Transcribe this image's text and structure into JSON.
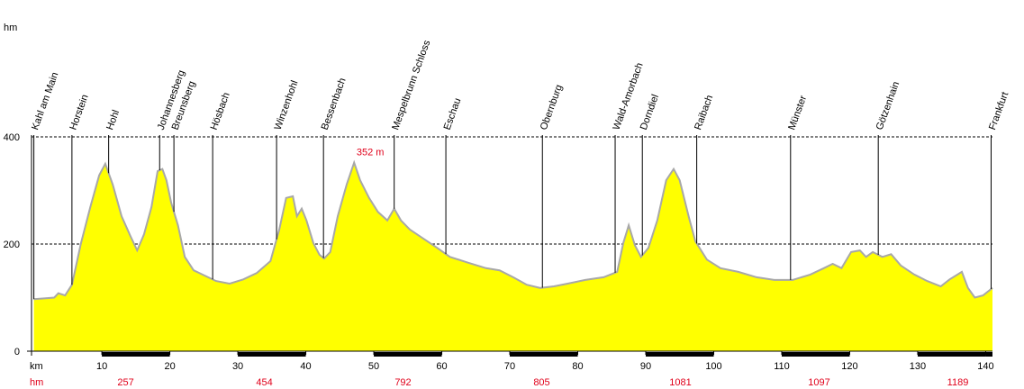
{
  "chart_data": {
    "type": "area",
    "y_axis_label": "hm",
    "x_axis_label": "km",
    "color": "#ffff00",
    "line_color": "#a8a8a8",
    "x": [
      0,
      3.0,
      3.6,
      4.6,
      5.6,
      6.9,
      8.3,
      9.6,
      10.5,
      11.6,
      12.9,
      14.2,
      15.2,
      16.2,
      17.3,
      18.2,
      18.9,
      19.5,
      20.2,
      21.2,
      22.2,
      23.5,
      24.8,
      26.8,
      28.8,
      30.8,
      32.8,
      34.8,
      36.1,
      37.1,
      38.1,
      38.7,
      39.4,
      40.1,
      41.1,
      42.0,
      42.7,
      43.6,
      44.7,
      46.0,
      47.1,
      48.0,
      49.3,
      50.6,
      52.0,
      53.0,
      54.0,
      55.3,
      57.3,
      59.3,
      61.2,
      63.9,
      66.5,
      68.5,
      70.5,
      72.5,
      74.5,
      76.5,
      78.5,
      81.1,
      83.8,
      85.8,
      86.7,
      87.5,
      88.4,
      89.3,
      90.4,
      91.7,
      93.0,
      94.1,
      95.0,
      96.3,
      97.3,
      99.0,
      101.0,
      103.6,
      106.3,
      108.9,
      111.6,
      114.2,
      116.2,
      117.5,
      118.8,
      120.2,
      121.5,
      122.4,
      123.4,
      124.8,
      126.1,
      127.5,
      129.5,
      131.4,
      133.4,
      134.7,
      136.5,
      137.4,
      138.4,
      139.6,
      141.0
    ],
    "values": [
      97,
      100,
      108,
      104,
      124,
      200,
      269,
      328,
      350,
      311,
      252,
      215,
      188,
      218,
      269,
      336,
      340,
      319,
      277,
      235,
      176,
      151,
      143,
      131,
      126,
      134,
      146,
      168,
      227,
      286,
      289,
      252,
      266,
      244,
      202,
      180,
      173,
      185,
      252,
      311,
      352,
      319,
      286,
      260,
      244,
      266,
      244,
      227,
      210,
      193,
      176,
      165,
      155,
      151,
      138,
      124,
      118,
      121,
      126,
      133,
      138,
      148,
      202,
      235,
      198,
      176,
      193,
      244,
      319,
      340,
      319,
      252,
      205,
      171,
      155,
      148,
      138,
      133,
      133,
      143,
      155,
      163,
      155,
      185,
      188,
      176,
      185,
      176,
      181,
      160,
      143,
      131,
      121,
      134,
      148,
      118,
      100,
      104,
      118
    ],
    "annotations": [
      {
        "text": "352 m"
      }
    ],
    "places": [
      {
        "name": "Kahl am Main",
        "km": 0
      },
      {
        "name": "Horstein",
        "km": 5.6
      },
      {
        "name": "Hohl",
        "km": 11.0
      },
      {
        "name": "Johannesberg",
        "km": 18.5
      },
      {
        "name": "Breunsberg",
        "km": 20.6
      },
      {
        "name": "Hösbach",
        "km": 26.3
      },
      {
        "name": "Winzenhohl",
        "km": 35.7
      },
      {
        "name": "Bessenbach",
        "km": 42.6
      },
      {
        "name": "Mespelbrunn Schloss",
        "km": 53.0
      },
      {
        "name": "Eschau",
        "km": 60.6
      },
      {
        "name": "Obernburg",
        "km": 74.8
      },
      {
        "name": "Wald-Amorbach",
        "km": 85.5
      },
      {
        "name": "Dorndiel",
        "km": 89.5
      },
      {
        "name": "Raibach",
        "km": 97.5
      },
      {
        "name": "Münster",
        "km": 111.3
      },
      {
        "name": "Götzenhain",
        "km": 124.2
      },
      {
        "name": "Frankfurt",
        "km": 140.8
      }
    ],
    "ascent": {
      "label": "hm",
      "values": [
        257,
        454,
        792,
        805,
        1081,
        1097,
        1189
      ]
    },
    "xlim": [
      0,
      141
    ],
    "xticks": [
      10,
      20,
      30,
      40,
      50,
      60,
      70,
      80,
      90,
      100,
      110,
      120,
      130,
      140
    ],
    "ylim": [
      0,
      400
    ],
    "yticks": [
      0,
      200,
      400
    ],
    "grid": true
  }
}
